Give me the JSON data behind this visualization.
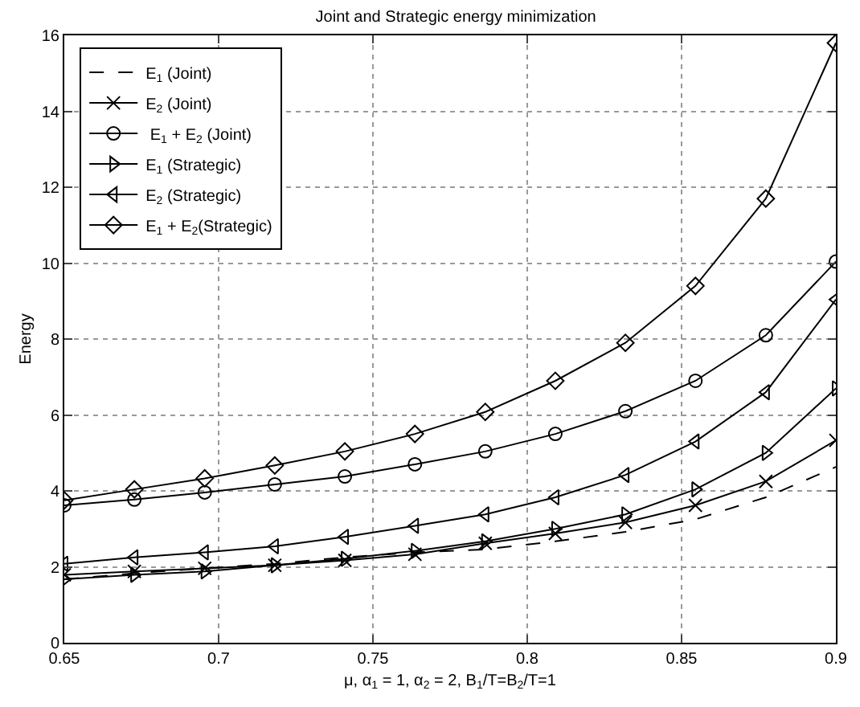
{
  "chart_data": {
    "type": "line",
    "title": "Joint and Strategic energy minimization",
    "xlabel": "μ, α$_{1}$ = 1, α$_{2}$ = 2, B$_{1}$/T=B$_{2}$/T=1",
    "ylabel": "Energy",
    "x": [
      0.65,
      0.6727,
      0.6955,
      0.7182,
      0.7409,
      0.7636,
      0.7864,
      0.8091,
      0.8318,
      0.8545,
      0.8773,
      0.9
    ],
    "series": [
      {
        "name": "E$_{1}$ (Joint)",
        "color": "#000000",
        "marker": "none",
        "line_style": "dashed",
        "values": [
          1.67,
          1.83,
          1.96,
          2.08,
          2.25,
          2.38,
          2.46,
          2.67,
          2.92,
          3.25,
          3.83,
          4.63
        ]
      },
      {
        "name": "E$_{2}$ (Joint)",
        "color": "#000000",
        "marker": "cross",
        "line_style": "solid",
        "values": [
          1.79,
          1.88,
          1.96,
          2.04,
          2.17,
          2.33,
          2.62,
          2.88,
          3.17,
          3.62,
          4.25,
          5.33
        ]
      },
      {
        "name": " E$_{1}$ + E$_{2}$ (Joint)",
        "color": "#000000",
        "marker": "circle",
        "line_style": "solid",
        "values": [
          3.62,
          3.77,
          3.96,
          4.17,
          4.38,
          4.7,
          5.04,
          5.5,
          6.1,
          6.9,
          8.1,
          10.04
        ]
      },
      {
        "name": "E$_{1}$ (Strategic)",
        "color": "#000000",
        "marker": "triangle-right",
        "line_style": "solid",
        "values": [
          1.67,
          1.79,
          1.88,
          2.04,
          2.21,
          2.42,
          2.67,
          3.0,
          3.38,
          4.04,
          5.0,
          6.7
        ]
      },
      {
        "name": "E$_{2}$ (Strategic)",
        "color": "#000000",
        "marker": "triangle-left",
        "line_style": "solid",
        "values": [
          2.08,
          2.25,
          2.38,
          2.54,
          2.79,
          3.08,
          3.38,
          3.83,
          4.42,
          5.3,
          6.6,
          9.04
        ]
      },
      {
        "name": "E$_{1}$ + E$_{2}$(Strategic)",
        "color": "#000000",
        "marker": "diamond",
        "line_style": "solid",
        "values": [
          3.75,
          4.04,
          4.33,
          4.67,
          5.04,
          5.5,
          6.08,
          6.9,
          7.9,
          9.4,
          11.7,
          15.8
        ]
      }
    ],
    "xlim": [
      0.65,
      0.9
    ],
    "xticks": [
      0.65,
      0.7,
      0.75,
      0.8,
      0.85,
      0.9
    ],
    "ylim": [
      0,
      16
    ],
    "yticks": [
      0,
      2,
      4,
      6,
      8,
      10,
      12,
      14,
      16
    ],
    "grid": true,
    "legend": "top left"
  }
}
